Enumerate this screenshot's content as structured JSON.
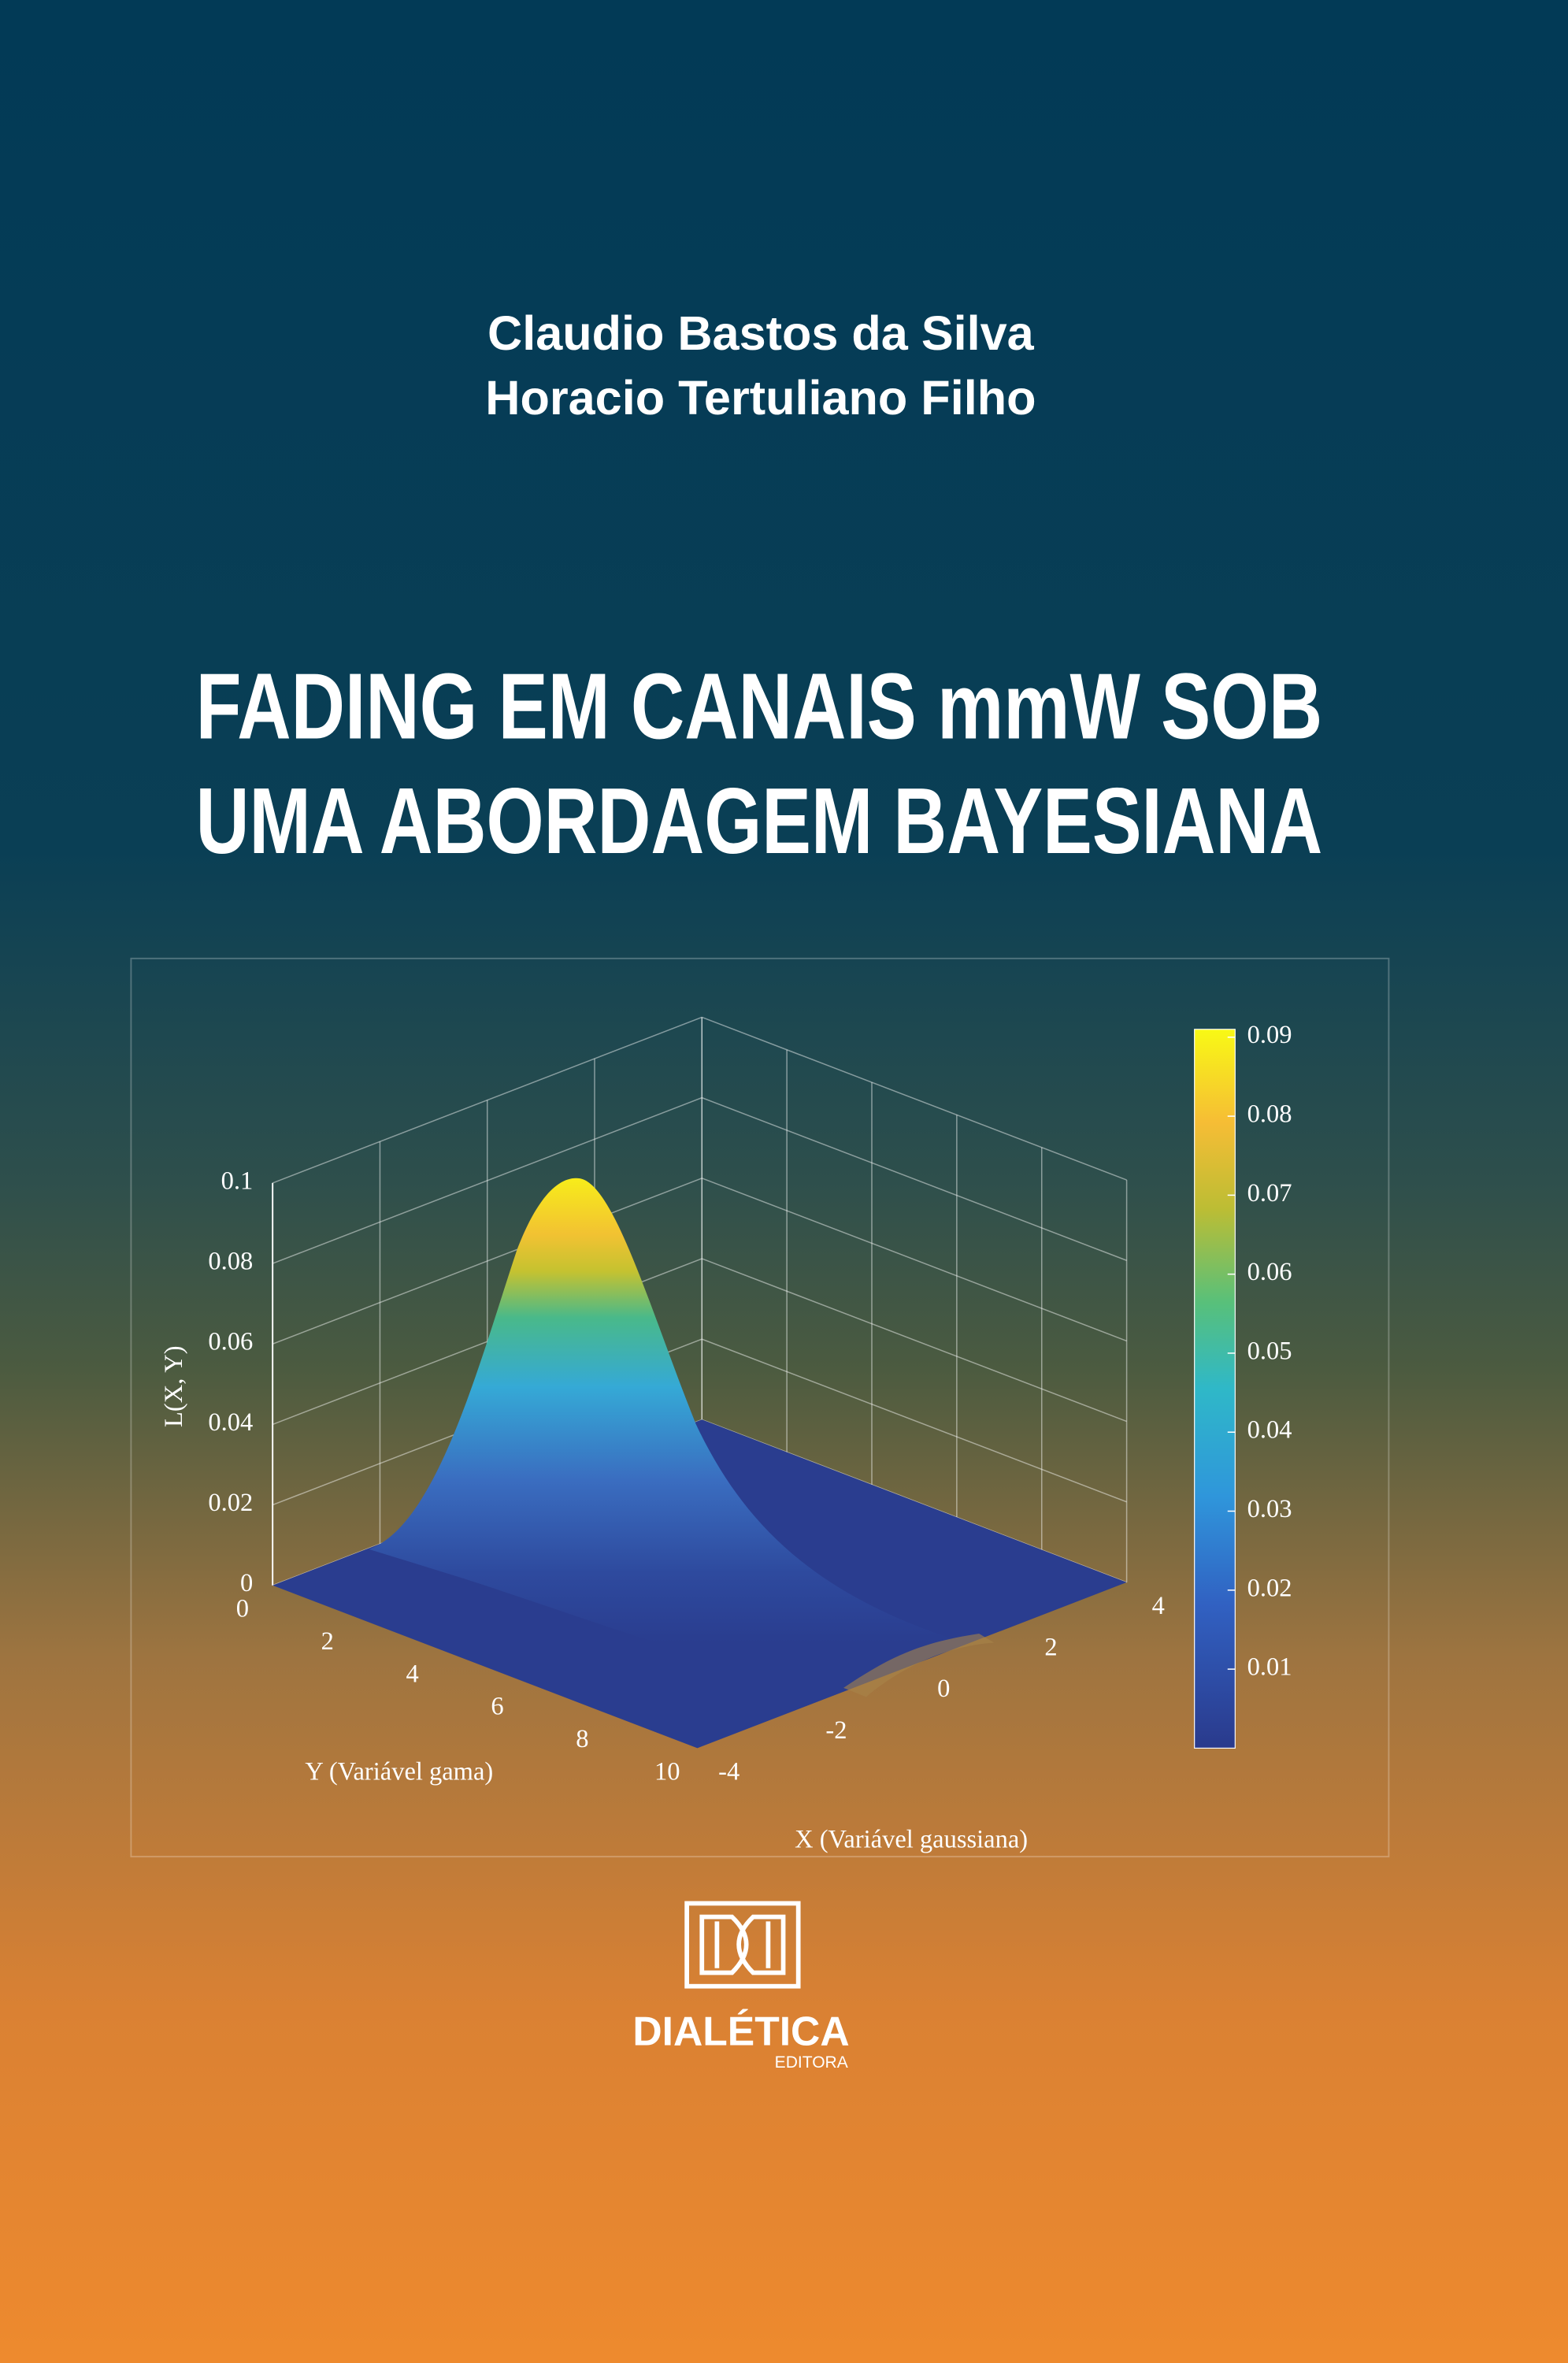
{
  "authors": [
    "Claudio Bastos da Silva",
    "Horacio Tertuliano Filho"
  ],
  "title": [
    "FADING EM CANAIS mmW SOB",
    "UMA ABORDAGEM BAYESIANA"
  ],
  "chart_data": {
    "type": "surface",
    "zlabel": "L(X, Y)",
    "ylabel": "Y (Variável gama)",
    "xlabel": "X (Variável gaussiana)",
    "xlim": [
      -4,
      4
    ],
    "xticks": [
      -4,
      -2,
      0,
      2,
      4
    ],
    "ylim": [
      0,
      10
    ],
    "yticks": [
      0,
      2,
      4,
      6,
      8,
      10
    ],
    "zlim": [
      0,
      0.1
    ],
    "zticks": [
      0,
      0.02,
      0.04,
      0.06,
      0.08,
      0.1
    ],
    "grid": true,
    "colorbar": {
      "clim": [
        0,
        0.091
      ],
      "ticks": [
        0.01,
        0.02,
        0.03,
        0.04,
        0.05,
        0.06,
        0.07,
        0.08,
        0.09
      ]
    }
  },
  "publisher": {
    "name": "DIALÉTICA",
    "subtitle": "EDITORA"
  }
}
